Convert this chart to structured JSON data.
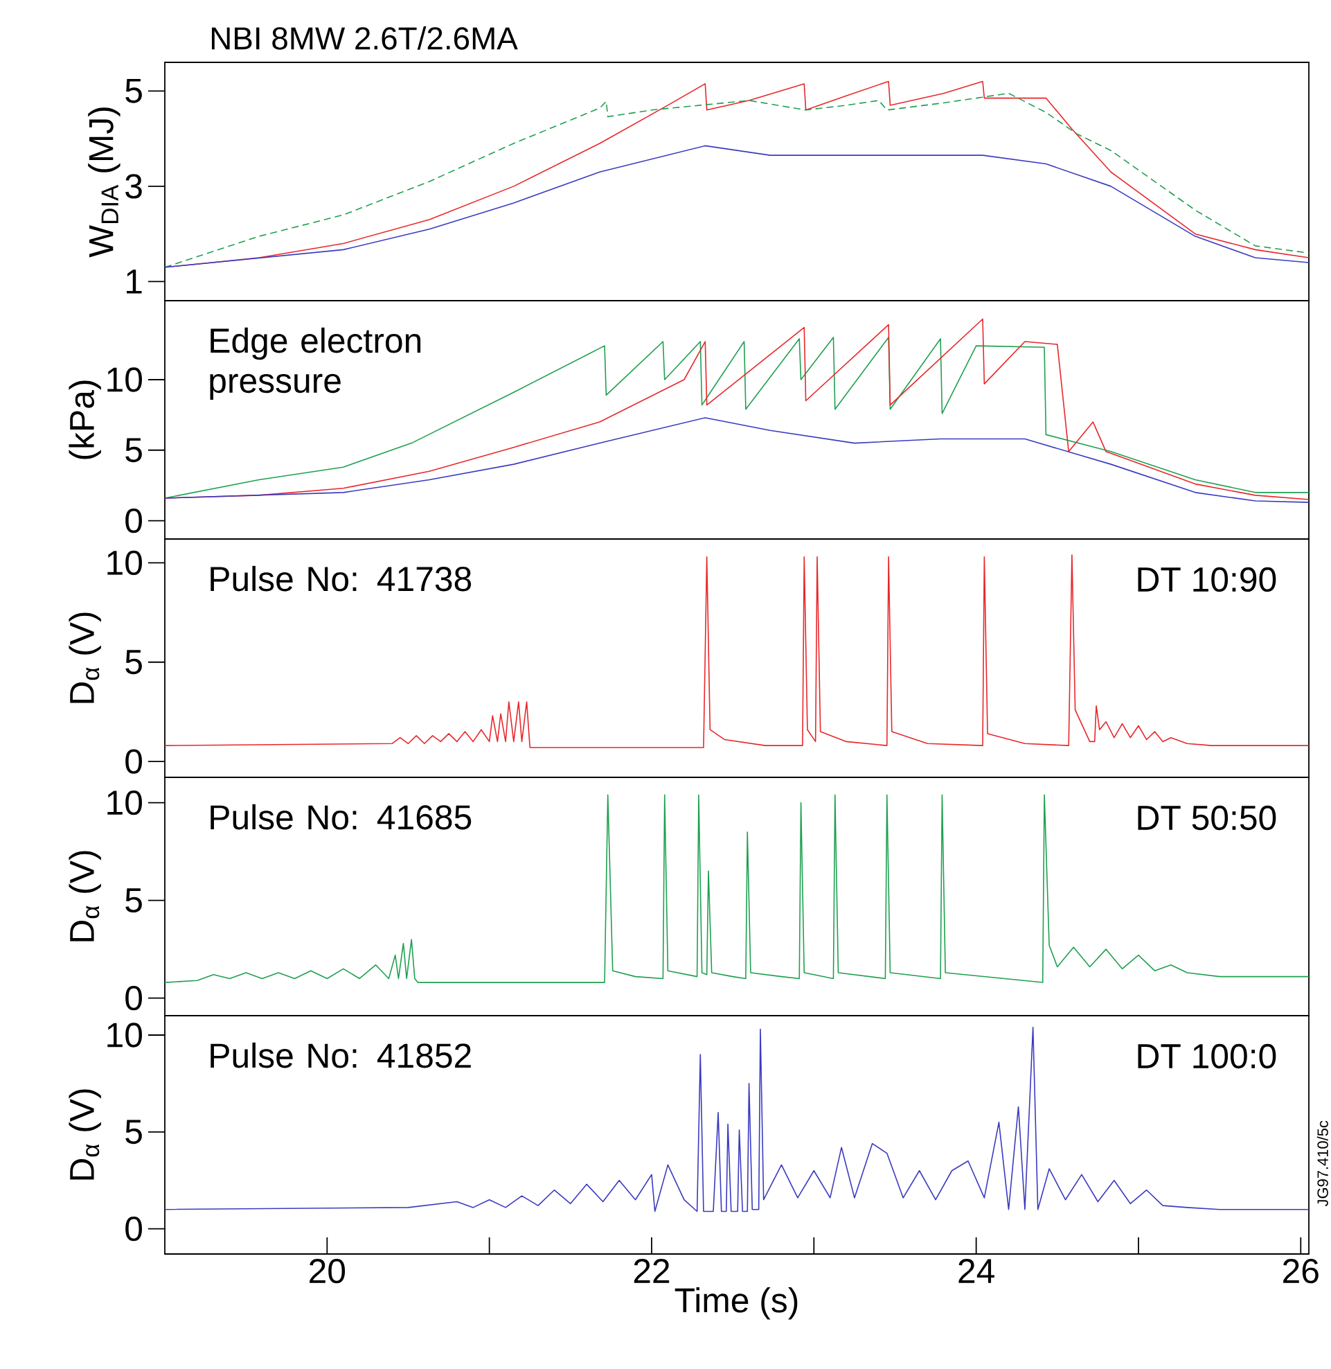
{
  "chart_data": [
    {
      "type": "line",
      "title": "NBI 8MW 2.6T/2.6MA",
      "ylabel": "W$_{DIA}$ (MJ)",
      "xlim": [
        19,
        26.05
      ],
      "ylim": [
        0.6,
        5.6
      ],
      "yticks": [
        1,
        3,
        5
      ],
      "tick_labels": "y",
      "series": [
        {
          "color": "#e8272a",
          "x": [
            19.0,
            19.58,
            20.1,
            20.63,
            21.15,
            21.68,
            22.1,
            22.33,
            22.34,
            22.6,
            22.94,
            22.95,
            23.2,
            23.46,
            23.47,
            23.8,
            24.04,
            24.05,
            24.43,
            24.59,
            24.83,
            25.35,
            25.72,
            26.05
          ],
          "values": [
            1.3,
            1.5,
            1.8,
            2.3,
            3.0,
            3.9,
            4.7,
            5.15,
            4.6,
            4.8,
            5.15,
            4.6,
            4.9,
            5.2,
            4.7,
            4.95,
            5.2,
            4.85,
            4.85,
            4.2,
            3.3,
            2.0,
            1.67,
            1.5
          ]
        },
        {
          "color": "#1fa050",
          "line_style": "dashed",
          "x": [
            19.0,
            19.58,
            20.1,
            20.63,
            21.15,
            21.68,
            21.72,
            21.73,
            22.0,
            22.3,
            22.6,
            22.95,
            23.2,
            23.4,
            23.45,
            23.8,
            24.0,
            24.2,
            24.43,
            24.62,
            24.83,
            25.35,
            25.72,
            26.05
          ],
          "values": [
            1.3,
            1.95,
            2.4,
            3.1,
            3.9,
            4.64,
            4.78,
            4.46,
            4.6,
            4.7,
            4.8,
            4.6,
            4.7,
            4.8,
            4.6,
            4.75,
            4.85,
            4.95,
            4.55,
            4.1,
            3.75,
            2.5,
            1.75,
            1.6
          ]
        },
        {
          "color": "#3a3ac0",
          "x": [
            19.0,
            20.1,
            20.63,
            21.15,
            21.68,
            22.33,
            22.73,
            23.25,
            24.04,
            24.43,
            24.83,
            25.35,
            25.72,
            26.05
          ],
          "values": [
            1.3,
            1.67,
            2.1,
            2.65,
            3.3,
            3.85,
            3.65,
            3.65,
            3.65,
            3.47,
            3.0,
            1.95,
            1.5,
            1.4
          ]
        }
      ]
    },
    {
      "type": "line",
      "ylabel": "(kPa)",
      "annotations": [
        "Edge electron pressure"
      ],
      "xlim": [
        19,
        26.05
      ],
      "ylim": [
        -1.3,
        15.6
      ],
      "yticks": [
        0,
        5,
        10
      ],
      "tick_labels": "y",
      "series": [
        {
          "color": "#1fa050",
          "x": [
            19.0,
            19.58,
            20.1,
            20.52,
            21.15,
            21.71,
            21.72,
            22.07,
            22.08,
            22.3,
            22.31,
            22.57,
            22.58,
            22.91,
            22.92,
            23.12,
            23.13,
            23.46,
            23.47,
            23.78,
            23.79,
            24.0,
            24.42,
            24.43,
            24.83,
            25.35,
            25.72,
            26.05
          ],
          "values": [
            1.6,
            2.9,
            3.8,
            5.5,
            9.1,
            12.4,
            8.9,
            12.7,
            10.0,
            12.7,
            8.2,
            12.7,
            7.9,
            12.9,
            10.0,
            13.0,
            7.9,
            13.0,
            7.9,
            12.9,
            7.6,
            12.4,
            12.3,
            6.1,
            4.9,
            2.9,
            2.0,
            2.0
          ]
        },
        {
          "color": "#e8272a",
          "x": [
            19.0,
            19.58,
            20.1,
            20.63,
            21.15,
            21.68,
            22.2,
            22.33,
            22.34,
            22.94,
            22.95,
            23.46,
            23.47,
            24.04,
            24.05,
            24.3,
            24.5,
            24.57,
            24.72,
            24.8,
            25.35,
            25.72,
            26.05
          ],
          "values": [
            1.6,
            1.8,
            2.3,
            3.5,
            5.2,
            7.0,
            10.0,
            12.7,
            8.2,
            13.7,
            8.5,
            13.9,
            8.2,
            14.3,
            9.7,
            12.7,
            12.5,
            4.9,
            7.0,
            4.9,
            2.6,
            1.8,
            1.5
          ]
        },
        {
          "color": "#3a3ac0",
          "x": [
            19.0,
            20.1,
            20.63,
            21.15,
            21.68,
            22.33,
            22.73,
            23.25,
            23.78,
            24.3,
            24.83,
            25.35,
            25.72,
            26.05
          ],
          "values": [
            1.6,
            2.0,
            2.9,
            4.0,
            5.5,
            7.3,
            6.4,
            5.5,
            5.8,
            5.8,
            4.0,
            2.0,
            1.4,
            1.3
          ]
        }
      ]
    },
    {
      "type": "line",
      "ylabel": "D$_{α}$ (V)",
      "annotations": [
        "Pulse No: 41738",
        "DT 10:90"
      ],
      "xlim": [
        19,
        26.05
      ],
      "ylim": [
        -0.8,
        11.2
      ],
      "yticks": [
        0,
        5,
        10
      ],
      "tick_labels": "y",
      "series": [
        {
          "color": "#e8272a",
          "x": [
            19.0,
            20.4,
            20.45,
            20.5,
            20.55,
            20.6,
            20.65,
            20.7,
            20.75,
            20.8,
            20.85,
            20.9,
            20.95,
            21.0,
            21.02,
            21.05,
            21.07,
            21.1,
            21.12,
            21.15,
            21.18,
            21.2,
            21.23,
            21.25,
            22.32,
            22.34,
            22.36,
            22.45,
            22.7,
            22.93,
            22.94,
            22.96,
            23.01,
            23.02,
            23.04,
            23.2,
            23.45,
            23.46,
            23.48,
            23.7,
            24.04,
            24.05,
            24.07,
            24.3,
            24.57,
            24.59,
            24.61,
            24.7,
            24.73,
            24.74,
            24.76,
            24.8,
            24.85,
            24.9,
            24.95,
            25.0,
            25.05,
            25.1,
            25.15,
            25.2,
            25.3,
            25.45,
            26.05
          ],
          "values": [
            0.8,
            0.9,
            1.2,
            0.9,
            1.3,
            0.9,
            1.3,
            1.0,
            1.4,
            1.0,
            1.5,
            1.0,
            1.6,
            1.0,
            2.3,
            1.0,
            2.4,
            1.0,
            3.0,
            1.0,
            3.0,
            1.0,
            3.0,
            0.7,
            0.7,
            10.3,
            1.6,
            1.1,
            0.8,
            0.8,
            10.3,
            1.6,
            1.0,
            10.3,
            1.5,
            1.0,
            0.8,
            10.3,
            1.5,
            0.9,
            0.8,
            10.3,
            1.4,
            0.9,
            0.8,
            10.4,
            2.6,
            1.0,
            1.0,
            2.8,
            1.6,
            2.0,
            1.2,
            1.9,
            1.2,
            1.8,
            1.1,
            1.5,
            1.0,
            1.2,
            0.9,
            0.8,
            0.8
          ]
        }
      ]
    },
    {
      "type": "line",
      "ylabel": "D$_{α}$ (V)",
      "annotations": [
        "Pulse No: 41685",
        "DT 50:50"
      ],
      "xlim": [
        19,
        26.05
      ],
      "ylim": [
        -0.9,
        11.3
      ],
      "yticks": [
        0,
        5,
        10
      ],
      "tick_labels": "y",
      "series": [
        {
          "color": "#1fa050",
          "x": [
            19.0,
            19.2,
            19.3,
            19.4,
            19.5,
            19.6,
            19.7,
            19.8,
            19.9,
            20.0,
            20.1,
            20.2,
            20.3,
            20.38,
            20.42,
            20.44,
            20.47,
            20.49,
            20.52,
            20.54,
            20.56,
            21.71,
            21.73,
            21.76,
            21.9,
            22.07,
            22.08,
            22.1,
            22.28,
            22.29,
            22.31,
            22.34,
            22.35,
            22.37,
            22.5,
            22.58,
            22.59,
            22.61,
            22.8,
            22.91,
            22.92,
            22.94,
            23.12,
            23.13,
            23.15,
            23.44,
            23.45,
            23.47,
            23.78,
            23.79,
            23.81,
            24.41,
            24.42,
            24.45,
            24.5,
            24.6,
            24.7,
            24.8,
            24.9,
            25.0,
            25.1,
            25.2,
            25.3,
            25.5,
            26.05
          ],
          "values": [
            0.8,
            0.9,
            1.2,
            1.0,
            1.3,
            1.0,
            1.3,
            1.0,
            1.4,
            1.0,
            1.5,
            1.0,
            1.7,
            1.0,
            2.2,
            1.0,
            2.8,
            1.0,
            3.0,
            1.0,
            0.8,
            0.8,
            10.4,
            1.4,
            1.1,
            1.0,
            10.4,
            1.4,
            1.1,
            10.4,
            1.3,
            1.2,
            6.5,
            1.3,
            1.1,
            1.0,
            8.5,
            1.3,
            1.1,
            1.0,
            10.0,
            1.3,
            1.0,
            10.4,
            1.3,
            1.0,
            10.4,
            1.3,
            1.0,
            10.4,
            1.3,
            0.8,
            10.4,
            2.7,
            1.6,
            2.6,
            1.6,
            2.5,
            1.5,
            2.2,
            1.4,
            1.7,
            1.3,
            1.1,
            1.1
          ]
        }
      ]
    },
    {
      "type": "line",
      "xlabel": "Time (s)",
      "ylabel": "D$_{α}$ (V)",
      "annotations": [
        "Pulse No: 41852",
        "DT 100:0",
        "JG97.410/5c"
      ],
      "xlim": [
        19,
        26.05
      ],
      "ylim": [
        -1.3,
        11.0
      ],
      "xticks": [
        20,
        {
          "value": 21,
          "label": null
        },
        22,
        {
          "value": 23,
          "label": null
        },
        24,
        {
          "value": 25,
          "label": null
        },
        26
      ],
      "yticks": [
        0,
        5,
        10
      ],
      "series": [
        {
          "color": "#3a3ac0",
          "x": [
            19.0,
            20.5,
            20.8,
            20.9,
            21.0,
            21.1,
            21.2,
            21.3,
            21.4,
            21.5,
            21.6,
            21.7,
            21.8,
            21.9,
            22.0,
            22.02,
            22.1,
            22.2,
            22.28,
            22.3,
            22.32,
            22.38,
            22.41,
            22.43,
            22.46,
            22.47,
            22.49,
            22.53,
            22.54,
            22.56,
            22.59,
            22.6,
            22.62,
            22.66,
            22.67,
            22.69,
            22.8,
            22.9,
            23.0,
            23.1,
            23.17,
            23.25,
            23.36,
            23.45,
            23.55,
            23.65,
            23.75,
            23.85,
            23.95,
            24.05,
            24.14,
            24.2,
            24.26,
            24.3,
            24.35,
            24.38,
            24.45,
            24.55,
            24.65,
            24.75,
            24.85,
            24.95,
            25.05,
            25.15,
            25.3,
            25.5,
            26.05
          ],
          "values": [
            1.0,
            1.1,
            1.4,
            1.1,
            1.5,
            1.1,
            1.7,
            1.2,
            2.0,
            1.3,
            2.3,
            1.4,
            2.5,
            1.5,
            2.8,
            0.9,
            3.3,
            1.5,
            0.9,
            9.0,
            0.9,
            0.9,
            6.0,
            0.9,
            0.9,
            5.4,
            0.9,
            0.9,
            5.1,
            0.9,
            0.9,
            7.5,
            1.0,
            1.0,
            10.3,
            1.5,
            3.3,
            1.6,
            3.0,
            1.6,
            4.2,
            1.6,
            4.4,
            3.9,
            1.6,
            3.0,
            1.5,
            3.0,
            3.5,
            1.6,
            5.5,
            1.0,
            6.3,
            1.0,
            10.4,
            1.0,
            3.1,
            1.5,
            2.8,
            1.4,
            2.5,
            1.3,
            2.0,
            1.2,
            1.1,
            1.0,
            1.0
          ]
        }
      ]
    }
  ]
}
